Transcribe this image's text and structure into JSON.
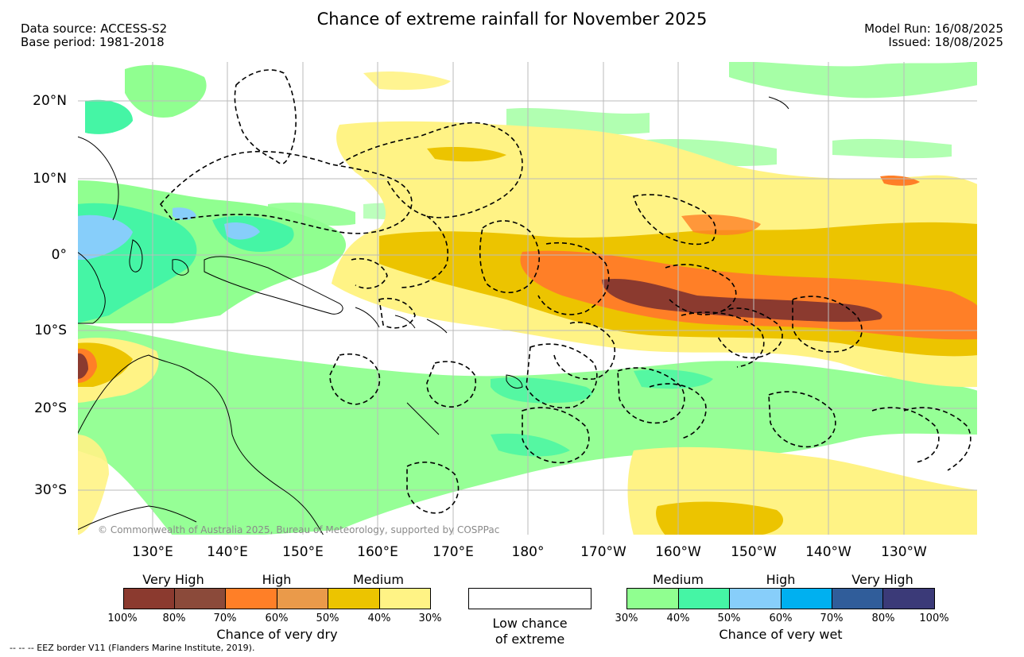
{
  "title": "Chance of extreme rainfall for November 2025",
  "header_left": {
    "data_source": "Data source: ACCESS-S2",
    "base_period": "Base period: 1981-2018"
  },
  "header_right": {
    "model_run": "Model Run: 16/08/2025",
    "issued": "Issued: 18/08/2025"
  },
  "lat_labels": [
    "20°N",
    "10°N",
    "0°",
    "10°S",
    "20°S",
    "30°S"
  ],
  "lon_labels": [
    "130°E",
    "140°E",
    "150°E",
    "160°E",
    "170°E",
    "180°",
    "170°W",
    "160°W",
    "150°W",
    "140°W",
    "130°W"
  ],
  "copyright": "© Commonwealth of Australia 2025, Bureau of Meteorology, supported by COSPPac",
  "legend_dry": {
    "levels": [
      "Very High",
      "High",
      "Medium"
    ],
    "ticks": [
      "100%",
      "80%",
      "70%",
      "60%",
      "50%",
      "40%",
      "30%"
    ],
    "caption": "Chance of very dry",
    "colors": [
      "#8b3a2f",
      "#8b4a3a",
      "#ff7f27",
      "#ea9a4a",
      "#ecc400",
      "#fff385"
    ]
  },
  "legend_low": {
    "caption_line1": "Low chance",
    "caption_line2": "of extreme"
  },
  "legend_wet": {
    "levels": [
      "Medium",
      "High",
      "Very High"
    ],
    "ticks": [
      "30%",
      "40%",
      "50%",
      "60%",
      "70%",
      "80%",
      "100%"
    ],
    "caption": "Chance of very wet",
    "colors": [
      "#90ff90",
      "#45f5a5",
      "#87cefa",
      "#00b0f0",
      "#305d9a",
      "#3b3a78"
    ]
  },
  "eez_note": "--  --  -- EEZ border V11 (Flanders Marine Institute, 2019).",
  "colors": {
    "very_dry_high": "#8b3a2f",
    "dry_high": "#ff7f27",
    "dry_medium": "#ecc400",
    "dry_low": "#fff385",
    "wet_medium": "#90ff90",
    "wet_high": "#45f5a5",
    "wet_light_blue": "#87cefa"
  }
}
